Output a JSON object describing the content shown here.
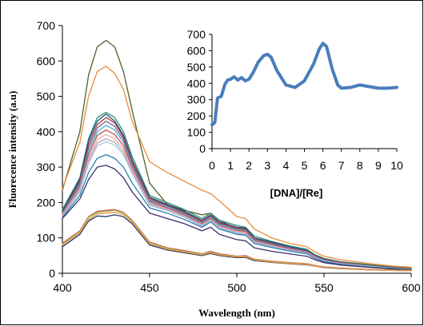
{
  "chart_data": [
    {
      "type": "line",
      "title": "",
      "xlabel": "Wavelength (nm)",
      "ylabel": "Fluorecence intensity (a.u)",
      "xlim": [
        400,
        600
      ],
      "ylim": [
        0,
        700
      ],
      "x_ticks": [
        400,
        450,
        500,
        550,
        600
      ],
      "y_ticks": [
        0,
        100,
        200,
        300,
        400,
        500,
        600,
        700
      ],
      "grid": false,
      "legend": "none",
      "x": [
        400,
        410,
        415,
        420,
        425,
        430,
        435,
        440,
        450,
        460,
        470,
        480,
        485,
        490,
        500,
        505,
        510,
        520,
        530,
        540,
        545,
        550,
        560,
        575,
        590,
        600
      ],
      "series": [
        {
          "color": "#4f6228",
          "values": [
            235,
            400,
            560,
            640,
            658,
            640,
            570,
            460,
            255,
            195,
            178,
            165,
            170,
            150,
            125,
            122,
            98,
            82,
            72,
            65,
            50,
            40,
            32,
            25,
            18,
            15
          ]
        },
        {
          "color": "#e98a36",
          "values": [
            240,
            370,
            500,
            570,
            585,
            565,
            520,
            430,
            315,
            285,
            260,
            235,
            225,
            205,
            160,
            155,
            125,
            100,
            85,
            75,
            60,
            48,
            38,
            28,
            20,
            17
          ]
        },
        {
          "color": "#2e8b7a",
          "values": [
            180,
            270,
            380,
            440,
            455,
            440,
            400,
            330,
            220,
            200,
            180,
            155,
            170,
            150,
            135,
            130,
            105,
            90,
            78,
            68,
            52,
            42,
            32,
            24,
            17,
            14
          ]
        },
        {
          "color": "#1f4e79",
          "values": [
            175,
            265,
            375,
            430,
            450,
            430,
            390,
            320,
            215,
            195,
            175,
            150,
            165,
            145,
            130,
            128,
            100,
            88,
            75,
            65,
            50,
            40,
            30,
            22,
            16,
            13
          ]
        },
        {
          "color": "#9e3a38",
          "values": [
            172,
            260,
            365,
            420,
            440,
            425,
            385,
            315,
            212,
            192,
            172,
            148,
            162,
            143,
            128,
            125,
            98,
            85,
            73,
            63,
            49,
            39,
            30,
            22,
            16,
            13
          ]
        },
        {
          "color": "#7f5f9f",
          "values": [
            170,
            255,
            355,
            410,
            430,
            415,
            378,
            310,
            208,
            190,
            170,
            145,
            160,
            140,
            125,
            122,
            96,
            83,
            72,
            62,
            48,
            38,
            29,
            21,
            15,
            12
          ]
        },
        {
          "color": "#4bacc6",
          "values": [
            168,
            250,
            345,
            400,
            418,
            405,
            370,
            305,
            205,
            188,
            168,
            143,
            158,
            138,
            123,
            120,
            94,
            82,
            70,
            61,
            47,
            37,
            28,
            21,
            15,
            12
          ]
        },
        {
          "color": "#c0504d",
          "values": [
            166,
            245,
            335,
            390,
            405,
            392,
            360,
            300,
            202,
            185,
            165,
            140,
            155,
            135,
            120,
            118,
            92,
            80,
            69,
            60,
            46,
            36,
            28,
            20,
            14,
            12
          ]
        },
        {
          "color": "#f2a7a5",
          "values": [
            164,
            240,
            325,
            378,
            392,
            380,
            350,
            292,
            198,
            182,
            162,
            138,
            152,
            133,
            118,
            115,
            90,
            78,
            67,
            58,
            45,
            35,
            27,
            20,
            14,
            11
          ]
        },
        {
          "color": "#b3a2c7",
          "values": [
            162,
            235,
            318,
            368,
            380,
            370,
            342,
            287,
            195,
            180,
            160,
            135,
            150,
            130,
            115,
            112,
            88,
            76,
            66,
            57,
            44,
            34,
            26,
            19,
            14,
            11
          ]
        },
        {
          "color": "#a6c9dc",
          "values": [
            160,
            230,
            310,
            360,
            372,
            362,
            335,
            282,
            192,
            177,
            158,
            133,
            148,
            128,
            113,
            110,
            86,
            75,
            65,
            56,
            43,
            34,
            26,
            19,
            13,
            11
          ]
        },
        {
          "color": "#2a7fb8",
          "values": [
            158,
            220,
            285,
            325,
            335,
            325,
            300,
            255,
            185,
            170,
            152,
            130,
            145,
            125,
            110,
            108,
            84,
            73,
            63,
            55,
            42,
            33,
            25,
            18,
            13,
            10
          ]
        },
        {
          "color": "#3d2d6b",
          "values": [
            155,
            210,
            265,
            300,
            305,
            295,
            270,
            230,
            170,
            155,
            140,
            120,
            130,
            110,
            95,
            92,
            72,
            62,
            55,
            48,
            38,
            30,
            23,
            17,
            12,
            10
          ]
        },
        {
          "color": "#c0504d",
          "values": [
            85,
            120,
            160,
            175,
            178,
            180,
            172,
            150,
            88,
            72,
            64,
            55,
            62,
            55,
            48,
            50,
            40,
            34,
            30,
            27,
            22,
            18,
            15,
            11,
            9,
            8
          ]
        },
        {
          "color": "#9bbb59",
          "values": [
            82,
            118,
            158,
            172,
            175,
            178,
            170,
            148,
            86,
            70,
            62,
            54,
            60,
            53,
            47,
            48,
            39,
            33,
            29,
            26,
            21,
            17,
            14,
            11,
            9,
            8
          ]
        },
        {
          "color": "#1f3864",
          "values": [
            75,
            110,
            148,
            162,
            160,
            165,
            160,
            140,
            80,
            66,
            58,
            50,
            56,
            50,
            44,
            45,
            36,
            31,
            27,
            24,
            20,
            16,
            13,
            10,
            8,
            7
          ]
        },
        {
          "color": "#f79646",
          "values": [
            80,
            115,
            152,
            168,
            170,
            172,
            166,
            145,
            84,
            68,
            60,
            52,
            58,
            52,
            46,
            47,
            38,
            32,
            28,
            25,
            20,
            17,
            14,
            10,
            8,
            7
          ]
        }
      ]
    },
    {
      "type": "line",
      "title": "",
      "xlabel": "[DNA]/[Re]",
      "ylabel": "",
      "xlim": [
        0,
        10
      ],
      "ylim": [
        0,
        700
      ],
      "x_ticks": [
        0,
        1,
        2,
        3,
        4,
        5,
        6,
        7,
        8,
        9,
        10
      ],
      "y_ticks": [
        0,
        100,
        200,
        300,
        400,
        500,
        600,
        700
      ],
      "grid": false,
      "legend": "none",
      "series": [
        {
          "color": "#4a7ebb",
          "x": [
            0,
            0.15,
            0.3,
            0.5,
            0.7,
            0.85,
            1.0,
            1.2,
            1.4,
            1.6,
            1.8,
            2.0,
            2.2,
            2.5,
            2.8,
            3.0,
            3.2,
            3.5,
            4.0,
            4.5,
            5.0,
            5.5,
            5.8,
            6.0,
            6.2,
            6.5,
            6.8,
            7.0,
            7.5,
            8.0,
            8.5,
            9.0,
            9.5,
            10.0
          ],
          "values": [
            145,
            160,
            310,
            320,
            395,
            420,
            425,
            440,
            420,
            435,
            415,
            425,
            460,
            530,
            570,
            578,
            560,
            480,
            390,
            375,
            415,
            520,
            610,
            645,
            625,
            490,
            390,
            370,
            375,
            390,
            380,
            370,
            370,
            375
          ]
        }
      ]
    }
  ]
}
